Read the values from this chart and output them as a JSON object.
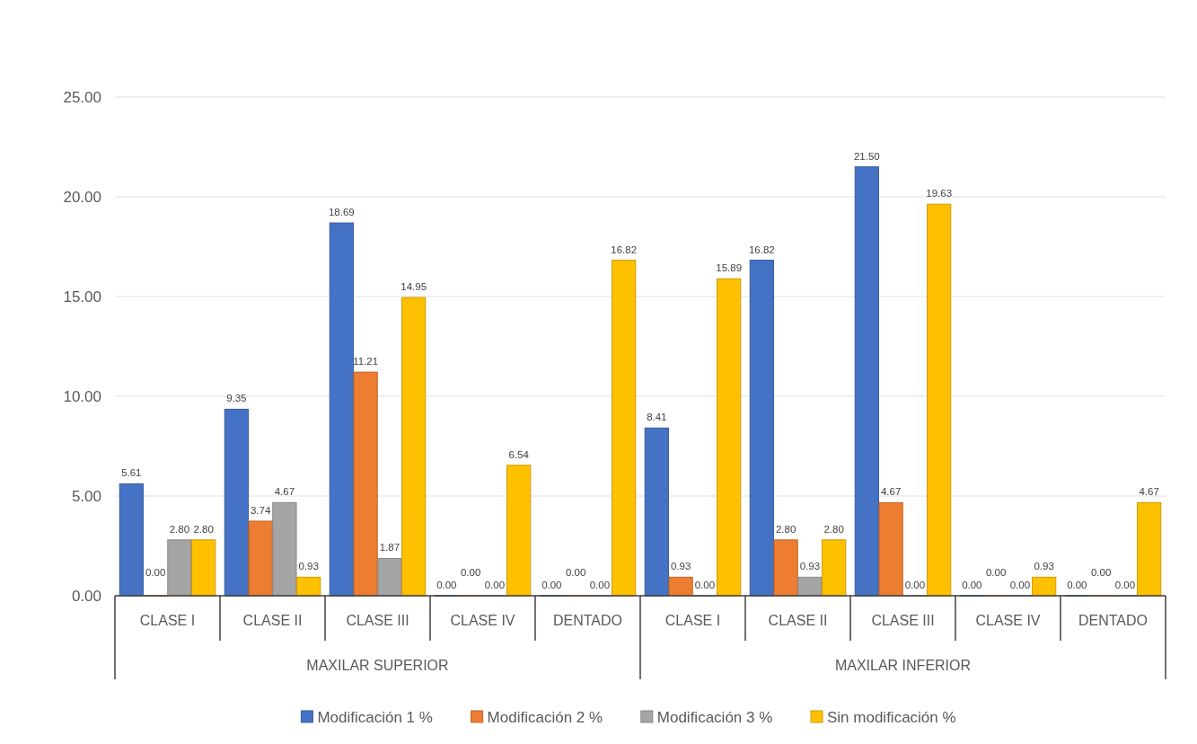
{
  "chart_data": {
    "type": "bar",
    "categories": [
      "CLASE I",
      "CLASE II",
      "CLASE III",
      "CLASE IV",
      "DENTADO",
      "CLASE I",
      "CLASE II",
      "CLASE III",
      "CLASE IV",
      "DENTADO"
    ],
    "series": [
      {
        "name": "Modificación 1 %",
        "color": "#4472c4",
        "values": [
          5.61,
          9.35,
          18.69,
          0,
          0,
          8.41,
          16.82,
          21.5,
          0,
          0
        ],
        "value_labels": [
          "5.61",
          "9.35",
          "18.69",
          "0.00",
          "0.00",
          "8.41",
          "16.82",
          "21.50",
          "0.00",
          "0.00"
        ]
      },
      {
        "name": "Modificación 2 %",
        "color": "#ed7d31",
        "values": [
          0,
          3.74,
          11.21,
          0,
          0,
          0.93,
          2.8,
          4.67,
          0,
          0
        ],
        "value_labels": [
          "0.00",
          "3.74",
          "11.21",
          "0.00",
          "0.00",
          "0.93",
          "2.80",
          "4.67",
          "0.00",
          "0.00"
        ]
      },
      {
        "name": "Modificación 3 %",
        "color": "#a5a5a5",
        "values": [
          2.8,
          4.67,
          1.87,
          0,
          0,
          0,
          0.93,
          0,
          0,
          0
        ],
        "value_labels": [
          "2.80",
          "4.67",
          "1.87",
          "0.00",
          "0.00",
          "0.00",
          "0.93",
          "0.00",
          "0.00",
          "0.00"
        ]
      },
      {
        "name": "Sin modificación %",
        "color": "#ffc000",
        "values": [
          2.8,
          0.93,
          14.95,
          6.54,
          16.82,
          15.89,
          2.8,
          19.63,
          0.93,
          4.67
        ],
        "value_labels": [
          "2.80",
          "0.93",
          "14.95",
          "6.54",
          "16.82",
          "15.89",
          "2.80",
          "19.63",
          "0.93",
          "4.67"
        ]
      }
    ],
    "ylim": [
      0,
      25
    ],
    "yticks": [
      {
        "value": 0,
        "label": "0.00"
      },
      {
        "value": 5,
        "label": "5.00"
      },
      {
        "value": 10,
        "label": "10.00"
      },
      {
        "value": 15,
        "label": "15.00"
      },
      {
        "value": 20,
        "label": "20.00"
      },
      {
        "value": 25,
        "label": "25.00"
      }
    ],
    "grid": "y",
    "legend": "bottom",
    "annotations": [
      "MAXILAR SUPERIOR",
      "MAXILAR INFERIOR"
    ]
  }
}
